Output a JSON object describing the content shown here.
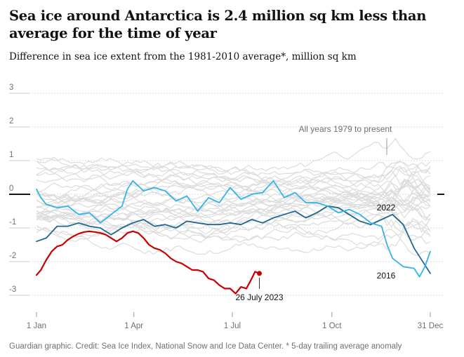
{
  "title": "Sea ice around Antarctica is 2.4 million sq km less than average for the time of year",
  "subtitle": "Difference in sea ice extent from the 1981-2010 average*, million sq km",
  "footer": "Guardian graphic. Credit: Sea Ice Index, National Snow and Ice Data Center. * 5-day trailing average anomaly",
  "chart_data": {
    "type": "line",
    "title": "Sea ice around Antarctica is 2.4 million sq km less than average for the time of year",
    "subtitle": "Difference in sea ice extent from the 1981-2010 average*, million sq km",
    "xlabel": "",
    "ylabel": "",
    "x_unit": "day of year",
    "xlim": [
      1,
      365
    ],
    "ylim": [
      -3.4,
      3.2
    ],
    "yticks": [
      3,
      2,
      1,
      0,
      -1,
      -2,
      -3
    ],
    "ytick_labels": [
      "3",
      "2",
      "1",
      "0",
      "-1",
      "-2",
      "-3"
    ],
    "xticks": [
      {
        "day": 1,
        "label": "1 Jan"
      },
      {
        "day": 91,
        "label": "1 Apr"
      },
      {
        "day": 182,
        "label": "1 Jul"
      },
      {
        "day": 274,
        "label": "1 Oct"
      },
      {
        "day": 365,
        "label": "31 Dec"
      }
    ],
    "grid": true,
    "legend": "none",
    "background_series_label": "All years 1979 to present",
    "background_color": "#dcdcdc",
    "series": [
      {
        "name": "2023",
        "color": "#c70000",
        "label": "26 July 2023",
        "x": [
          1,
          5,
          10,
          15,
          20,
          25,
          30,
          35,
          40,
          45,
          50,
          55,
          60,
          65,
          70,
          75,
          80,
          85,
          90,
          95,
          100,
          105,
          110,
          115,
          120,
          125,
          130,
          135,
          140,
          145,
          150,
          155,
          160,
          165,
          170,
          175,
          180,
          185,
          190,
          195,
          200,
          203,
          207
        ],
        "y": [
          -2.4,
          -2.25,
          -1.95,
          -1.7,
          -1.55,
          -1.5,
          -1.35,
          -1.25,
          -1.17,
          -1.12,
          -1.1,
          -1.12,
          -1.15,
          -1.2,
          -1.3,
          -1.4,
          -1.3,
          -1.15,
          -1.1,
          -1.15,
          -1.3,
          -1.5,
          -1.6,
          -1.65,
          -1.75,
          -1.9,
          -2.0,
          -2.05,
          -2.15,
          -2.25,
          -2.25,
          -2.3,
          -2.5,
          -2.55,
          -2.7,
          -2.8,
          -2.8,
          -2.95,
          -2.75,
          -2.8,
          -2.5,
          -2.3,
          -2.35
        ]
      },
      {
        "name": "2022",
        "color": "#1f6790",
        "label": "2022",
        "x": [
          1,
          10,
          20,
          30,
          40,
          50,
          60,
          70,
          80,
          90,
          100,
          110,
          120,
          130,
          140,
          150,
          160,
          170,
          180,
          190,
          200,
          210,
          220,
          230,
          240,
          250,
          260,
          270,
          280,
          290,
          300,
          310,
          320,
          330,
          340,
          350,
          360,
          365
        ],
        "y": [
          -1.4,
          -1.3,
          -0.95,
          -0.95,
          -0.85,
          -0.95,
          -1.0,
          -1.2,
          -1.0,
          -0.85,
          -0.75,
          -0.95,
          -0.9,
          -1.0,
          -0.8,
          -0.85,
          -0.9,
          -0.9,
          -0.85,
          -0.9,
          -0.75,
          -0.85,
          -0.7,
          -0.6,
          -0.5,
          -0.7,
          -0.55,
          -0.35,
          -0.4,
          -0.6,
          -0.8,
          -0.9,
          -0.75,
          -0.6,
          -0.9,
          -1.6,
          -2.1,
          -2.35
        ]
      },
      {
        "name": "2016",
        "color": "#33b4e8",
        "label": "2016",
        "x": [
          1,
          5,
          10,
          20,
          30,
          40,
          50,
          60,
          70,
          80,
          85,
          90,
          100,
          110,
          120,
          130,
          140,
          150,
          160,
          170,
          180,
          190,
          200,
          210,
          220,
          230,
          240,
          250,
          260,
          270,
          280,
          290,
          300,
          310,
          320,
          325,
          330,
          340,
          350,
          355,
          360,
          365
        ],
        "y": [
          0.15,
          -0.1,
          -0.3,
          -0.4,
          -0.35,
          -0.6,
          -0.55,
          -0.85,
          -0.6,
          -0.35,
          0.15,
          0.4,
          0.1,
          0.2,
          0.1,
          -0.2,
          -0.05,
          -0.5,
          -0.1,
          -0.25,
          0.2,
          -0.15,
          0.0,
          0.05,
          0.4,
          -0.1,
          0.05,
          -0.25,
          -0.25,
          -0.35,
          -0.55,
          -0.45,
          -0.6,
          -0.85,
          -0.95,
          -1.5,
          -1.9,
          -2.15,
          -2.2,
          -2.45,
          -2.15,
          -1.7
        ]
      }
    ]
  },
  "annotations": {
    "all_years": "All years 1979 to present",
    "label_2023": "26 July 2023",
    "label_2022": "2022",
    "label_2016": "2016"
  }
}
